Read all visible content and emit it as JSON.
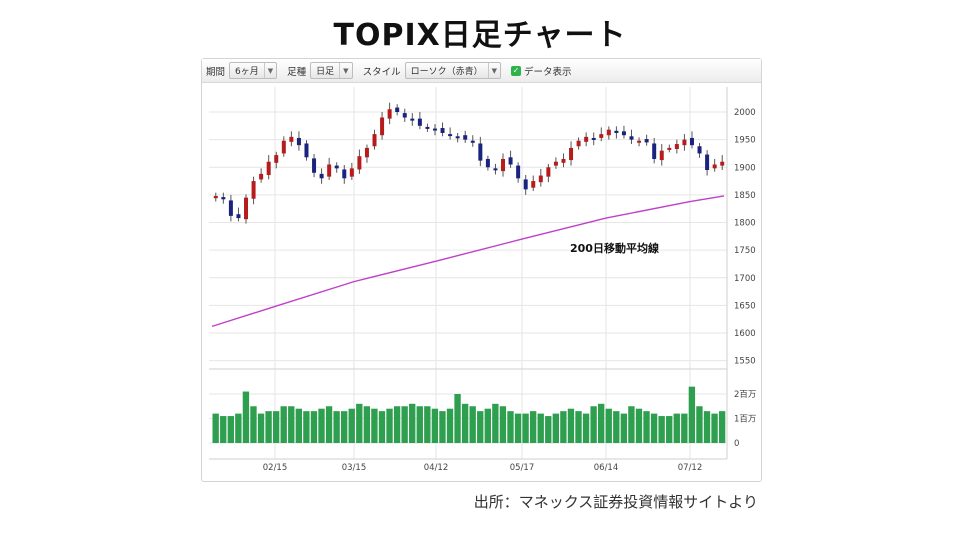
{
  "title": "TOPIX日足チャート",
  "source": "出所：マネックス証券投資情報サイトより",
  "toolbar": {
    "period_label": "期間",
    "period_value": "6ヶ月",
    "interval_label": "足種",
    "interval_value": "日足",
    "style_label": "スタイル",
    "style_value": "ローソク（赤青）",
    "show_data_label": "データ表示",
    "show_data_checked": true
  },
  "colors": {
    "up": "#b71c1c",
    "down": "#1a237e",
    "ma": "#c040c8",
    "volume": "#2e9e4f",
    "check": "#2db34a"
  },
  "chart_data": [
    {
      "type": "candlestick",
      "style": "red-blue candlestick",
      "price_axis": {
        "ticks": [
          1550,
          1600,
          1650,
          1700,
          1750,
          1800,
          1850,
          1900,
          1950,
          2000
        ],
        "position": "right"
      },
      "x_ticks": [
        "02/15",
        "03/15",
        "04/12",
        "05/17",
        "06/14",
        "07/12"
      ],
      "grid": true,
      "approx_close": [
        1848,
        1842,
        1812,
        1808,
        1845,
        1875,
        1888,
        1910,
        1922,
        1948,
        1955,
        1940,
        1918,
        1890,
        1880,
        1905,
        1898,
        1880,
        1898,
        1920,
        1935,
        1960,
        1990,
        2005,
        2000,
        1990,
        1985,
        1975,
        1972,
        1968,
        1962,
        1958,
        1955,
        1950,
        1945,
        1912,
        1900,
        1895,
        1915,
        1905,
        1880,
        1860,
        1875,
        1885,
        1900,
        1910,
        1915,
        1935,
        1948,
        1955,
        1950,
        1960,
        1968,
        1962,
        1958,
        1950,
        1948,
        1945,
        1915,
        1930,
        1935,
        1942,
        1950,
        1940,
        1925,
        1895,
        1905,
        1910
      ],
      "annotation": "200日移動平均線",
      "moving_average_200": [
        {
          "x": "start",
          "y": 1612
        },
        {
          "x": "02/15",
          "y": 1648
        },
        {
          "x": "03/15",
          "y": 1693
        },
        {
          "x": "04/12",
          "y": 1730
        },
        {
          "x": "05/17",
          "y": 1770
        },
        {
          "x": "06/14",
          "y": 1808
        },
        {
          "x": "07/12",
          "y": 1838
        },
        {
          "x": "end",
          "y": 1848
        }
      ]
    },
    {
      "type": "bar",
      "series": "volume",
      "volume_axis": {
        "ticks": [
          "0",
          "1百万",
          "2百万"
        ]
      },
      "approx_values_millions": [
        1.2,
        1.1,
        1.1,
        1.2,
        2.1,
        1.5,
        1.2,
        1.3,
        1.3,
        1.5,
        1.5,
        1.4,
        1.3,
        1.3,
        1.4,
        1.5,
        1.3,
        1.3,
        1.4,
        1.6,
        1.5,
        1.4,
        1.3,
        1.4,
        1.5,
        1.5,
        1.6,
        1.5,
        1.5,
        1.4,
        1.3,
        1.4,
        2.0,
        1.6,
        1.5,
        1.3,
        1.4,
        1.6,
        1.5,
        1.3,
        1.2,
        1.2,
        1.3,
        1.2,
        1.1,
        1.2,
        1.3,
        1.4,
        1.3,
        1.2,
        1.5,
        1.6,
        1.4,
        1.3,
        1.2,
        1.5,
        1.4,
        1.3,
        1.2,
        1.1,
        1.1,
        1.2,
        1.2,
        2.3,
        1.5,
        1.3,
        1.2,
        1.3
      ]
    }
  ]
}
